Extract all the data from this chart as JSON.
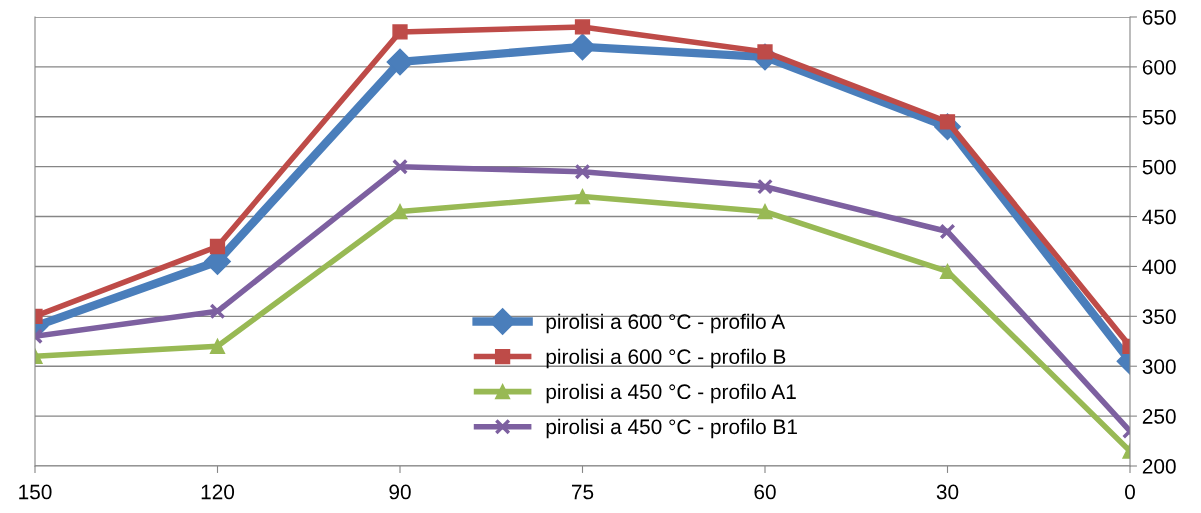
{
  "chart_data": {
    "type": "line",
    "categories": [
      "150",
      "120",
      "90",
      "75",
      "60",
      "30",
      "0"
    ],
    "series": [
      {
        "name": "pirolisi a 600 °C - profilo A",
        "color": "#4a7ebb",
        "marker": "diamond",
        "values": [
          340,
          405,
          605,
          620,
          610,
          540,
          305
        ]
      },
      {
        "name": "pirolisi a 600 °C - profilo B",
        "color": "#be4b48",
        "marker": "square",
        "values": [
          350,
          420,
          635,
          640,
          615,
          545,
          320
        ]
      },
      {
        "name": "pirolisi a 450 °C - profilo A1",
        "color": "#98b954",
        "marker": "triangle",
        "values": [
          310,
          320,
          455,
          470,
          455,
          395,
          215
        ]
      },
      {
        "name": "pirolisi a 450 °C - profilo B1",
        "color": "#7d60a0",
        "marker": "cross",
        "values": [
          330,
          355,
          500,
          495,
          480,
          435,
          235
        ]
      }
    ],
    "ylim": [
      200,
      650
    ],
    "yticks": [
      200,
      250,
      300,
      350,
      400,
      450,
      500,
      550,
      600,
      650
    ],
    "grid": "y",
    "legend": "bottom",
    "line_style": "solid"
  }
}
